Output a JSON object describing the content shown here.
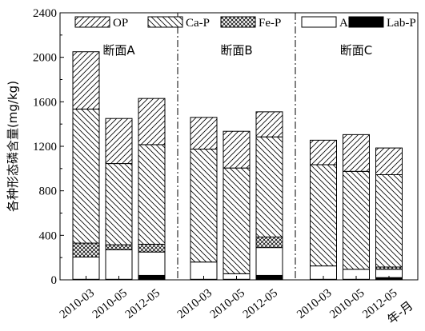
{
  "chart_data": {
    "type": "bar",
    "stacked": true,
    "ylabel": "各种形态磷含量(mg/kg)",
    "xlabel": "年-月",
    "ylim": [
      0,
      2400
    ],
    "yticks": [
      0,
      400,
      800,
      1200,
      1600,
      2000,
      2400
    ],
    "legend_position": "top",
    "grid": false,
    "series": [
      {
        "name": "OP",
        "pattern": "diagonal-up"
      },
      {
        "name": "Ca-P",
        "pattern": "diagonal-down"
      },
      {
        "name": "Fe-P",
        "pattern": "crosshatch"
      },
      {
        "name": "Al-P",
        "pattern": "none"
      },
      {
        "name": "Lab-P",
        "pattern": "solid"
      }
    ],
    "groups": [
      {
        "title": "断面A",
        "bars": [
          {
            "x": "2010-03",
            "values": {
              "Lab-P": 5,
              "Al-P": 200,
              "Fe-P": 125,
              "Ca-P": 1205,
              "OP": 515
            }
          },
          {
            "x": "2010-05",
            "values": {
              "Lab-P": 5,
              "Al-P": 265,
              "Fe-P": 45,
              "Ca-P": 730,
              "OP": 405
            }
          },
          {
            "x": "2012-05",
            "values": {
              "Lab-P": 40,
              "Al-P": 210,
              "Fe-P": 70,
              "Ca-P": 895,
              "OP": 415
            }
          }
        ]
      },
      {
        "title": "断面B",
        "bars": [
          {
            "x": "2010-03",
            "values": {
              "Lab-P": 5,
              "Al-P": 155,
              "Fe-P": 0,
              "Ca-P": 1015,
              "OP": 285
            }
          },
          {
            "x": "2010-05",
            "values": {
              "Lab-P": 5,
              "Al-P": 50,
              "Fe-P": 0,
              "Ca-P": 950,
              "OP": 330
            }
          },
          {
            "x": "2012-05",
            "values": {
              "Lab-P": 40,
              "Al-P": 250,
              "Fe-P": 95,
              "Ca-P": 900,
              "OP": 225
            }
          }
        ]
      },
      {
        "title": "断面C",
        "bars": [
          {
            "x": "2010-03",
            "values": {
              "Lab-P": 5,
              "Al-P": 120,
              "Fe-P": 0,
              "Ca-P": 910,
              "OP": 220
            }
          },
          {
            "x": "2010-05",
            "values": {
              "Lab-P": 5,
              "Al-P": 90,
              "Fe-P": 0,
              "Ca-P": 880,
              "OP": 330
            }
          },
          {
            "x": "2012-05",
            "values": {
              "Lab-P": 20,
              "Al-P": 75,
              "Fe-P": 20,
              "Ca-P": 830,
              "OP": 240
            }
          }
        ]
      }
    ]
  }
}
